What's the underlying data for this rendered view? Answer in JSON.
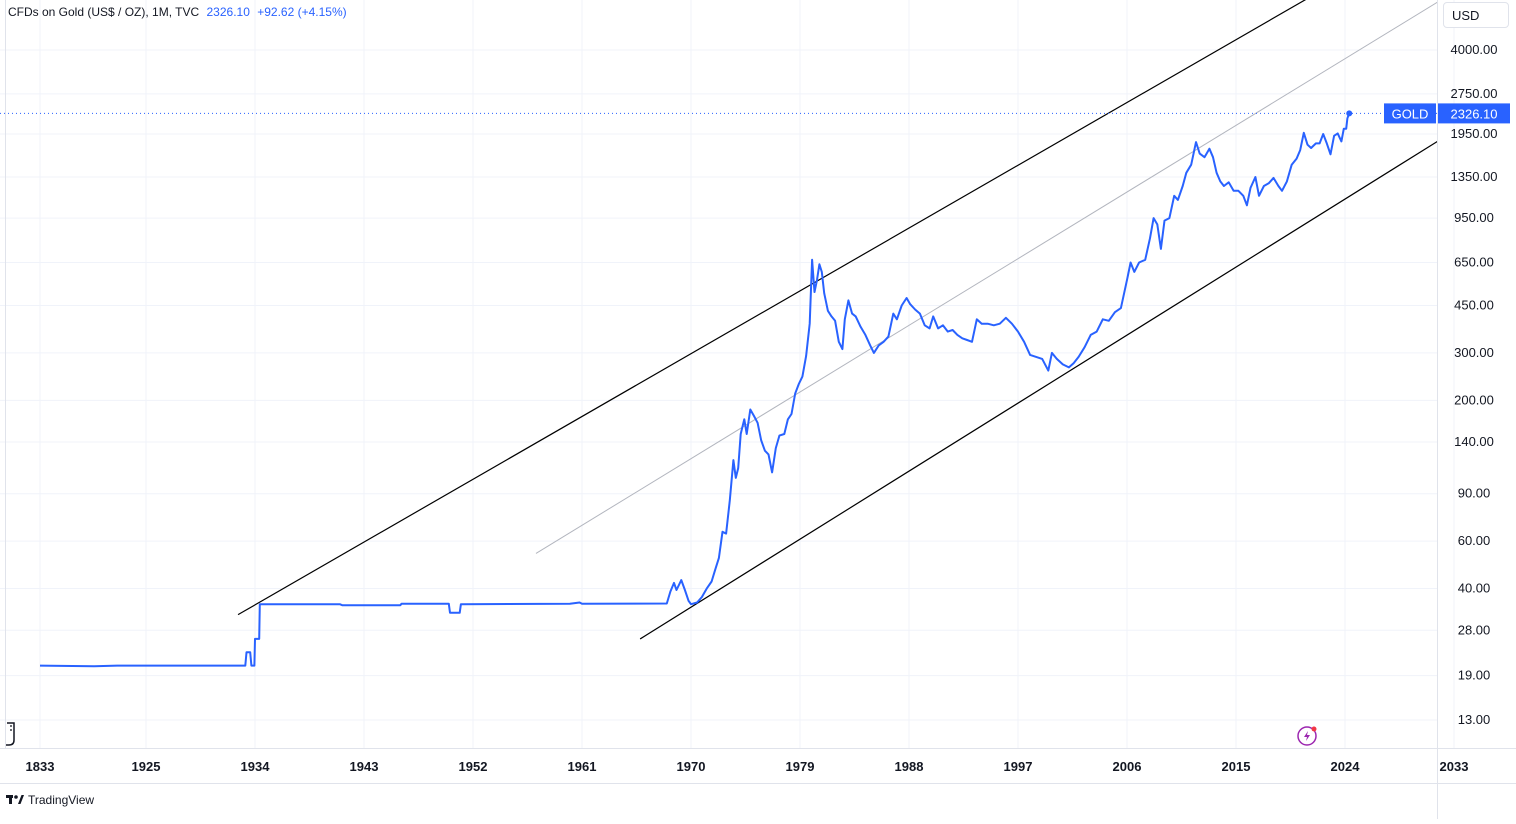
{
  "legend": {
    "symbol": "CFDs on Gold (US$ / OZ), 1M, TVC",
    "price": "2326.10",
    "change": "+92.62 (+4.15%)"
  },
  "currency": "USD",
  "price_label": {
    "symbol": "GOLD",
    "value": "2326.10"
  },
  "branding": "TradingView",
  "colors": {
    "line": "#2962ff",
    "channel": "#000000",
    "midline": "#b2b5be",
    "grid": "#f0f3fa",
    "label_bg": "#2962ff"
  },
  "icons": [
    "tradingview-logo-icon",
    "lightning-icon",
    "drawing-tool-icon"
  ],
  "chart_data": {
    "type": "line",
    "y_scale": "log",
    "ylim": [
      11,
      5200
    ],
    "y_ticks": [
      13,
      19,
      28,
      40,
      60,
      90,
      140,
      200,
      300,
      450,
      650,
      950,
      1350,
      1950,
      2750,
      4000
    ],
    "y_tick_labels": [
      "13.00",
      "19.00",
      "28.00",
      "40.00",
      "60.00",
      "90.00",
      "140.00",
      "200.00",
      "300.00",
      "450.00",
      "650.00",
      "950.00",
      "1350.00",
      "1950.00",
      "2750.00",
      "4000.00"
    ],
    "x_tick_labels": [
      "1833",
      "1925",
      "1934",
      "1943",
      "1952",
      "1961",
      "1970",
      "1979",
      "1988",
      "1997",
      "2006",
      "2015",
      "2024",
      "2033"
    ],
    "series": [
      {
        "points": [
          [
            1833,
            20.7
          ],
          [
            1880,
            20.6
          ],
          [
            1900,
            20.7
          ],
          [
            1925,
            20.7
          ],
          [
            1932,
            20.7
          ],
          [
            1933.2,
            20.7
          ],
          [
            1933.3,
            23.2
          ],
          [
            1933.6,
            23.2
          ],
          [
            1933.7,
            20.7
          ],
          [
            1933.95,
            20.7
          ],
          [
            1934.0,
            26.0
          ],
          [
            1934.35,
            26.0
          ],
          [
            1934.4,
            35.0
          ],
          [
            1941,
            35.0
          ],
          [
            1941.2,
            34.7
          ],
          [
            1946,
            34.7
          ],
          [
            1946.1,
            35.1
          ],
          [
            1950,
            35.1
          ],
          [
            1950.1,
            32.5
          ],
          [
            1950.9,
            32.5
          ],
          [
            1951,
            35.0
          ],
          [
            1960,
            35.1
          ],
          [
            1960.8,
            35.5
          ],
          [
            1961,
            35.1
          ],
          [
            1968,
            35.2
          ],
          [
            1968.3,
            39.0
          ],
          [
            1968.6,
            42.0
          ],
          [
            1968.8,
            39.5
          ],
          [
            1969.2,
            43.0
          ],
          [
            1969.5,
            39.5
          ],
          [
            1969.8,
            36.0
          ],
          [
            1970.0,
            35.0
          ],
          [
            1970.5,
            35.5
          ],
          [
            1970.9,
            37.2
          ],
          [
            1971.3,
            40.0
          ],
          [
            1971.7,
            42.5
          ],
          [
            1972.0,
            47
          ],
          [
            1972.3,
            52
          ],
          [
            1972.6,
            65
          ],
          [
            1972.9,
            64
          ],
          [
            1973.2,
            85
          ],
          [
            1973.5,
            120
          ],
          [
            1973.7,
            103
          ],
          [
            1973.9,
            112
          ],
          [
            1974.1,
            150
          ],
          [
            1974.4,
            170
          ],
          [
            1974.6,
            150
          ],
          [
            1974.9,
            185
          ],
          [
            1975.2,
            175
          ],
          [
            1975.5,
            165
          ],
          [
            1975.8,
            142
          ],
          [
            1976.1,
            130
          ],
          [
            1976.4,
            126
          ],
          [
            1976.7,
            108
          ],
          [
            1977.0,
            133
          ],
          [
            1977.3,
            148
          ],
          [
            1977.7,
            150
          ],
          [
            1978.0,
            170
          ],
          [
            1978.3,
            178
          ],
          [
            1978.6,
            212
          ],
          [
            1978.9,
            230
          ],
          [
            1979.2,
            245
          ],
          [
            1979.5,
            292
          ],
          [
            1979.8,
            385
          ],
          [
            1980.0,
            665
          ],
          [
            1980.2,
            505
          ],
          [
            1980.4,
            560
          ],
          [
            1980.6,
            640
          ],
          [
            1980.8,
            600
          ],
          [
            1981.0,
            500
          ],
          [
            1981.3,
            430
          ],
          [
            1981.6,
            410
          ],
          [
            1981.9,
            395
          ],
          [
            1982.2,
            330
          ],
          [
            1982.5,
            310
          ],
          [
            1982.7,
            400
          ],
          [
            1983.0,
            470
          ],
          [
            1983.3,
            420
          ],
          [
            1983.6,
            410
          ],
          [
            1984.0,
            375
          ],
          [
            1984.4,
            350
          ],
          [
            1984.8,
            320
          ],
          [
            1985.1,
            300
          ],
          [
            1985.5,
            320
          ],
          [
            1985.9,
            330
          ],
          [
            1986.3,
            345
          ],
          [
            1986.7,
            420
          ],
          [
            1987.0,
            400
          ],
          [
            1987.4,
            450
          ],
          [
            1987.8,
            480
          ],
          [
            1988.1,
            455
          ],
          [
            1988.5,
            435
          ],
          [
            1988.9,
            420
          ],
          [
            1989.3,
            380
          ],
          [
            1989.7,
            370
          ],
          [
            1990.0,
            410
          ],
          [
            1990.4,
            370
          ],
          [
            1990.8,
            380
          ],
          [
            1991.2,
            360
          ],
          [
            1991.6,
            365
          ],
          [
            1992.0,
            350
          ],
          [
            1992.4,
            340
          ],
          [
            1992.8,
            335
          ],
          [
            1993.2,
            330
          ],
          [
            1993.6,
            400
          ],
          [
            1994.0,
            385
          ],
          [
            1994.5,
            385
          ],
          [
            1995.0,
            380
          ],
          [
            1995.5,
            385
          ],
          [
            1996.0,
            405
          ],
          [
            1996.5,
            385
          ],
          [
            1997.0,
            360
          ],
          [
            1997.5,
            330
          ],
          [
            1998.0,
            295
          ],
          [
            1998.5,
            290
          ],
          [
            1999.0,
            285
          ],
          [
            1999.5,
            258
          ],
          [
            1999.8,
            300
          ],
          [
            2000.2,
            285
          ],
          [
            2000.7,
            272
          ],
          [
            2001.2,
            265
          ],
          [
            2001.6,
            275
          ],
          [
            2002.0,
            290
          ],
          [
            2002.5,
            315
          ],
          [
            2003.0,
            350
          ],
          [
            2003.5,
            360
          ],
          [
            2004.0,
            400
          ],
          [
            2004.5,
            395
          ],
          [
            2005.0,
            425
          ],
          [
            2005.5,
            440
          ],
          [
            2006.0,
            560
          ],
          [
            2006.3,
            650
          ],
          [
            2006.6,
            600
          ],
          [
            2007.0,
            650
          ],
          [
            2007.5,
            665
          ],
          [
            2007.9,
            800
          ],
          [
            2008.2,
            950
          ],
          [
            2008.5,
            900
          ],
          [
            2008.8,
            730
          ],
          [
            2009.1,
            930
          ],
          [
            2009.5,
            950
          ],
          [
            2009.9,
            1150
          ],
          [
            2010.2,
            1110
          ],
          [
            2010.6,
            1250
          ],
          [
            2010.9,
            1400
          ],
          [
            2011.3,
            1500
          ],
          [
            2011.7,
            1820
          ],
          [
            2012.0,
            1650
          ],
          [
            2012.4,
            1600
          ],
          [
            2012.8,
            1720
          ],
          [
            2013.1,
            1600
          ],
          [
            2013.4,
            1400
          ],
          [
            2013.7,
            1300
          ],
          [
            2014.0,
            1250
          ],
          [
            2014.4,
            1290
          ],
          [
            2014.8,
            1200
          ],
          [
            2015.2,
            1200
          ],
          [
            2015.6,
            1150
          ],
          [
            2015.9,
            1060
          ],
          [
            2016.2,
            1230
          ],
          [
            2016.6,
            1350
          ],
          [
            2016.9,
            1150
          ],
          [
            2017.3,
            1250
          ],
          [
            2017.7,
            1280
          ],
          [
            2018.1,
            1340
          ],
          [
            2018.5,
            1250
          ],
          [
            2018.8,
            1200
          ],
          [
            2019.2,
            1300
          ],
          [
            2019.6,
            1500
          ],
          [
            2020.0,
            1580
          ],
          [
            2020.3,
            1700
          ],
          [
            2020.6,
            1970
          ],
          [
            2020.9,
            1780
          ],
          [
            2021.2,
            1730
          ],
          [
            2021.6,
            1800
          ],
          [
            2021.9,
            1800
          ],
          [
            2022.2,
            1950
          ],
          [
            2022.5,
            1800
          ],
          [
            2022.8,
            1640
          ],
          [
            2023.1,
            1920
          ],
          [
            2023.4,
            1960
          ],
          [
            2023.7,
            1830
          ],
          [
            2023.9,
            2040
          ],
          [
            2024.1,
            2040
          ],
          [
            2024.2,
            2230
          ],
          [
            2024.35,
            2326
          ]
        ]
      }
    ],
    "channel": {
      "upper": [
        [
          1932.6,
          32.0
        ],
        [
          2021.4,
          6400
        ]
      ],
      "middle": [
        [
          1957.2,
          54.0
        ],
        [
          2032.6,
          6400
        ]
      ],
      "lower": [
        [
          1965.8,
          26.0
        ],
        [
          2033.0,
          2000
        ]
      ]
    },
    "last_value": 2326.1
  }
}
